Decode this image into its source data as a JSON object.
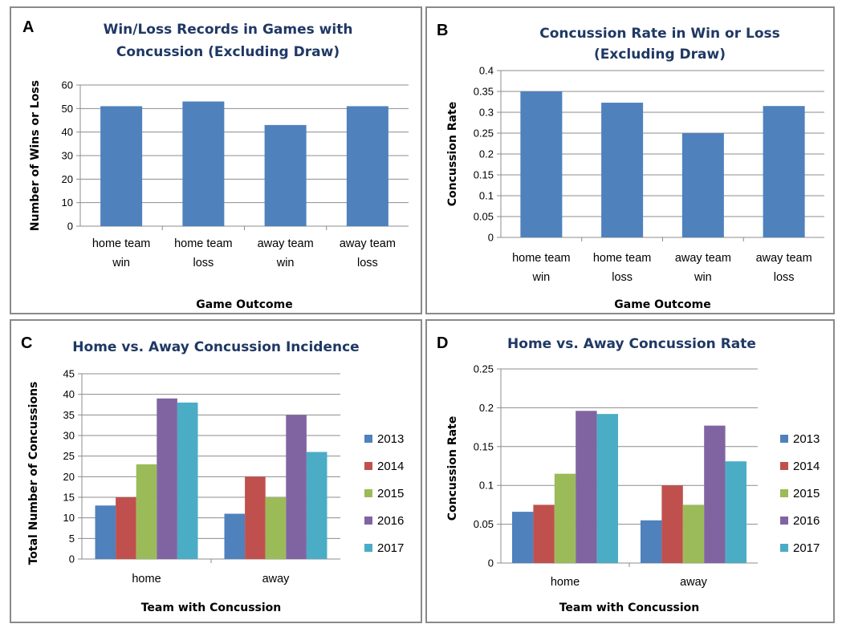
{
  "chart_data": [
    {
      "letter": "A",
      "type": "bar",
      "title_lines": [
        "Win/Loss Records in Games with",
        "Concussion (Excluding Draw)"
      ],
      "xlabel": "Game Outcome",
      "ylabel": "Number of Wins or Loss",
      "ylim": [
        0,
        60
      ],
      "yticks": [
        "0",
        "10",
        "20",
        "30",
        "40",
        "50",
        "60"
      ],
      "categories": [
        [
          "home team",
          "win"
        ],
        [
          "home team",
          "loss"
        ],
        [
          "away team",
          "win"
        ],
        [
          "away team",
          "loss"
        ]
      ],
      "values": [
        51,
        53,
        43,
        51
      ],
      "color": "#4f81bd",
      "grid": true
    },
    {
      "letter": "B",
      "type": "bar",
      "title_lines": [
        "Concussion Rate  in Win or Loss",
        "(Excluding Draw)"
      ],
      "xlabel": "Game Outcome",
      "ylabel": "Concussion Rate",
      "ylim": [
        0,
        0.4
      ],
      "yticks": [
        "0",
        "0.05",
        "0.1",
        "0.15",
        "0.2",
        "0.25",
        "0.3",
        "0.35",
        "0.4"
      ],
      "categories": [
        [
          "home team",
          "win"
        ],
        [
          "home team",
          "loss"
        ],
        [
          "away team",
          "win"
        ],
        [
          "away team",
          "loss"
        ]
      ],
      "values": [
        0.35,
        0.323,
        0.25,
        0.315
      ],
      "color": "#4f81bd",
      "grid": true
    },
    {
      "letter": "C",
      "type": "bar",
      "title_lines": [
        "Home vs. Away Concussion Incidence"
      ],
      "xlabel": "Team with Concussion",
      "ylabel": "Total Number of Concussions",
      "ylim": [
        0,
        45
      ],
      "yticks": [
        "0",
        "5",
        "10",
        "15",
        "20",
        "25",
        "30",
        "35",
        "40",
        "45"
      ],
      "categories": [
        [
          "home"
        ],
        [
          "away"
        ]
      ],
      "series": [
        {
          "name": "2013",
          "color": "#4f81bd",
          "values": [
            13,
            11
          ]
        },
        {
          "name": "2014",
          "color": "#c0504d",
          "values": [
            15,
            20
          ]
        },
        {
          "name": "2015",
          "color": "#9bbb59",
          "values": [
            23,
            15
          ]
        },
        {
          "name": "2016",
          "color": "#8064a2",
          "values": [
            39,
            35
          ]
        },
        {
          "name": "2017",
          "color": "#4bacc6",
          "values": [
            38,
            26
          ]
        }
      ],
      "legend": "right",
      "grid": true
    },
    {
      "letter": "D",
      "type": "bar",
      "title_lines": [
        "Home vs. Away Concussion Rate"
      ],
      "xlabel": "Team with Concussion",
      "ylabel": "Concussion Rate",
      "ylim": [
        0,
        0.25
      ],
      "yticks": [
        "0",
        "0.05",
        "0.1",
        "0.15",
        "0.2",
        "0.25"
      ],
      "categories": [
        [
          "home"
        ],
        [
          "away"
        ]
      ],
      "series": [
        {
          "name": "2013",
          "color": "#4f81bd",
          "values": [
            0.066,
            0.055
          ]
        },
        {
          "name": "2014",
          "color": "#c0504d",
          "values": [
            0.075,
            0.1
          ]
        },
        {
          "name": "2015",
          "color": "#9bbb59",
          "values": [
            0.115,
            0.075
          ]
        },
        {
          "name": "2016",
          "color": "#8064a2",
          "values": [
            0.196,
            0.177
          ]
        },
        {
          "name": "2017",
          "color": "#4bacc6",
          "values": [
            0.192,
            0.131
          ]
        }
      ],
      "legend": "right",
      "grid": true
    }
  ]
}
